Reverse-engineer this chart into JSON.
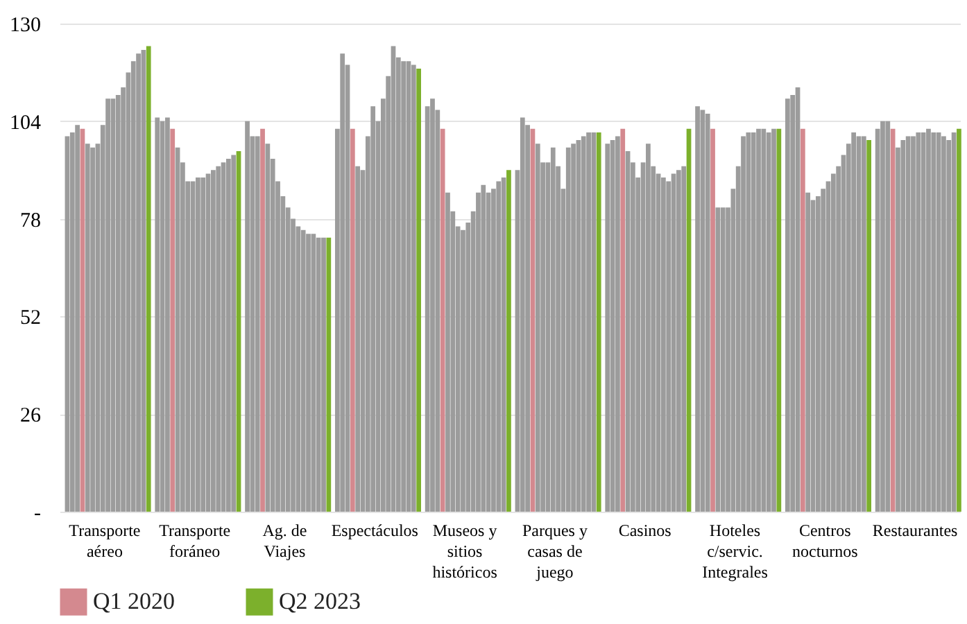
{
  "chart_data": {
    "type": "bar",
    "categories": [
      "Transporte aéreo",
      "Transporte foráneo",
      "Ag. de Viajes",
      "Espectáculos",
      "Museos y sitios históricos",
      "Parques y casas de juego",
      "Casinos",
      "Hoteles c/servic. Integrales",
      "Centros nocturnos",
      "Restaurantes"
    ],
    "series": [
      {
        "color": "#9c9c9c",
        "values": [
          100,
          105,
          104,
          102,
          108,
          91,
          98,
          108,
          110,
          102
        ]
      },
      {
        "color": "#9c9c9c",
        "values": [
          101,
          104,
          100,
          122,
          110,
          105,
          99,
          107,
          111,
          104
        ]
      },
      {
        "color": "#9c9c9c",
        "values": [
          103,
          105,
          100,
          119,
          107,
          103,
          100,
          106,
          113,
          104
        ]
      },
      {
        "name": "Q1 2020",
        "color": "#d4898f",
        "values": [
          102,
          102,
          102,
          102,
          102,
          102,
          102,
          102,
          102,
          102
        ]
      },
      {
        "color": "#9c9c9c",
        "values": [
          98,
          97,
          98,
          92,
          85,
          98,
          96,
          81,
          85,
          97
        ]
      },
      {
        "color": "#9c9c9c",
        "values": [
          97,
          93,
          94,
          91,
          80,
          93,
          93,
          81,
          83,
          99
        ]
      },
      {
        "color": "#9c9c9c",
        "values": [
          98,
          88,
          88,
          100,
          76,
          93,
          89,
          81,
          84,
          100
        ]
      },
      {
        "color": "#9c9c9c",
        "values": [
          103,
          88,
          84,
          108,
          75,
          97,
          93,
          86,
          86,
          100
        ]
      },
      {
        "color": "#9c9c9c",
        "values": [
          110,
          89,
          81,
          104,
          77,
          92,
          98,
          92,
          88,
          101
        ]
      },
      {
        "color": "#9c9c9c",
        "values": [
          110,
          89,
          78,
          110,
          80,
          86,
          92,
          100,
          90,
          101
        ]
      },
      {
        "color": "#9c9c9c",
        "values": [
          111,
          90,
          76,
          116,
          85,
          97,
          90,
          101,
          92,
          102
        ]
      },
      {
        "color": "#9c9c9c",
        "values": [
          113,
          91,
          75,
          124,
          87,
          98,
          89,
          101,
          95,
          101
        ]
      },
      {
        "color": "#9c9c9c",
        "values": [
          117,
          92,
          74,
          121,
          85,
          99,
          88,
          102,
          98,
          101
        ]
      },
      {
        "color": "#9c9c9c",
        "values": [
          120,
          93,
          74,
          120,
          86,
          100,
          90,
          102,
          101,
          100
        ]
      },
      {
        "color": "#9c9c9c",
        "values": [
          122,
          94,
          73,
          120,
          88,
          101,
          91,
          101,
          100,
          99
        ]
      },
      {
        "color": "#9c9c9c",
        "values": [
          123,
          95,
          73,
          119,
          89,
          101,
          92,
          102,
          100,
          101
        ]
      },
      {
        "name": "Q2 2023",
        "color": "#7cb02c",
        "values": [
          124,
          96,
          73,
          118,
          91,
          101,
          102,
          102,
          99,
          102
        ]
      }
    ],
    "ylim": [
      0,
      130
    ],
    "yticks": [
      {
        "value": 0,
        "label": "-"
      },
      26,
      52,
      78,
      104,
      130
    ],
    "grid": "y",
    "legend": "bottom"
  }
}
